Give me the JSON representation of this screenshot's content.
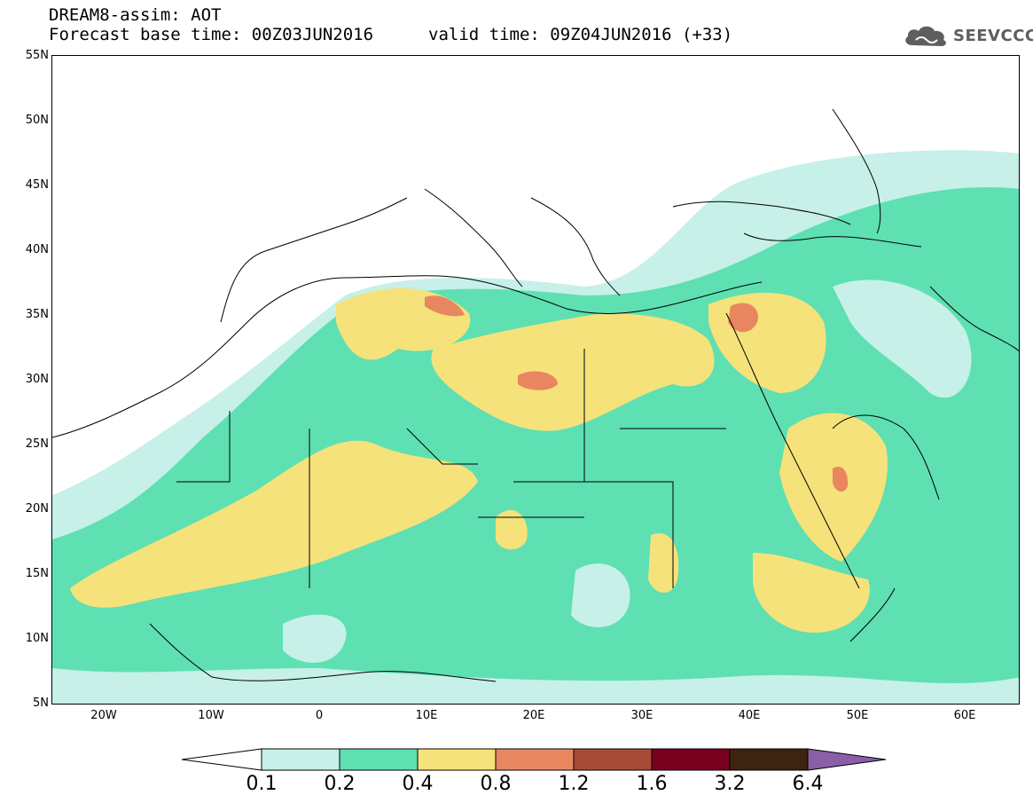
{
  "header": {
    "title_line1": "DREAM8-assim: AOT",
    "title_line2": "Forecast base time: 00Z03JUN2016",
    "valid_time": "valid time: 09Z04JUN2016 (+33)",
    "logo_text": "SEEVCCC"
  },
  "map": {
    "lat_labels": [
      "55N",
      "50N",
      "45N",
      "40N",
      "35N",
      "30N",
      "25N",
      "20N",
      "15N",
      "10N",
      "5N"
    ],
    "lon_labels": [
      "20W",
      "10W",
      "0",
      "10E",
      "20E",
      "30E",
      "40E",
      "50E",
      "60E"
    ],
    "projection": "cylindrical lat-lon",
    "lat_range": [
      5,
      55
    ],
    "lon_range": [
      -25,
      65
    ]
  },
  "legend": {
    "labels": [
      "0.1",
      "0.2",
      "0.4",
      "0.8",
      "1.2",
      "1.6",
      "3.2",
      "6.4"
    ],
    "colors": [
      "#ffffff",
      "#c6f0e8",
      "#5ee0b2",
      "#f5e27a",
      "#e8875f",
      "#a84a38",
      "#7a0020",
      "#3d2410",
      "#8a5fa8"
    ]
  }
}
